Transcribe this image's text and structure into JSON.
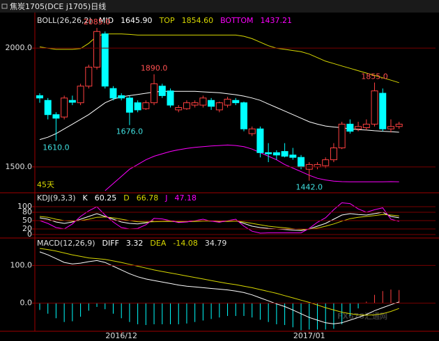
{
  "title": "焦炭1705(DCE j1705)日线",
  "watermark": "FX678汇通网",
  "chart_data": [
    {
      "type": "candlestick",
      "indicator": "BOLL(26,26,2)",
      "note": "45天",
      "up_color": "#ff4040",
      "down_color": "#00ffff",
      "open": [
        1800,
        1780,
        1720,
        1710,
        1780,
        1770,
        1840,
        1920,
        2060,
        1830,
        1800,
        1790,
        1770,
        1745,
        1770,
        1840,
        1820,
        1740,
        1745,
        1760,
        1760,
        1780,
        1740,
        1760,
        1780,
        1770,
        1640,
        1660,
        1560,
        1560,
        1565,
        1550,
        1540,
        1490,
        1500,
        1505,
        1530,
        1580,
        1680,
        1660,
        1665,
        1680,
        1810,
        1660,
        1670
      ],
      "high": [
        1810,
        1790,
        1730,
        1800,
        1800,
        1850,
        1930,
        2085,
        2070,
        1840,
        1810,
        1800,
        1780,
        1780,
        1890,
        1850,
        1830,
        1760,
        1780,
        1780,
        1800,
        1790,
        1775,
        1795,
        1790,
        1775,
        1670,
        1670,
        1600,
        1570,
        1600,
        1580,
        1550,
        1520,
        1520,
        1540,
        1600,
        1690,
        1700,
        1690,
        1700,
        1855,
        1830,
        1700,
        1690
      ],
      "low": [
        1770,
        1700,
        1610,
        1700,
        1760,
        1760,
        1830,
        1910,
        1830,
        1780,
        1780,
        1676,
        1730,
        1740,
        1760,
        1790,
        1750,
        1730,
        1740,
        1750,
        1750,
        1740,
        1730,
        1750,
        1760,
        1650,
        1630,
        1540,
        1520,
        1530,
        1540,
        1530,
        1490,
        1442,
        1490,
        1495,
        1520,
        1575,
        1640,
        1650,
        1655,
        1670,
        1650,
        1645,
        1660
      ],
      "close": [
        1790,
        1720,
        1705,
        1790,
        1772,
        1840,
        1920,
        2070,
        1840,
        1790,
        1790,
        1730,
        1740,
        1770,
        1850,
        1800,
        1760,
        1750,
        1770,
        1770,
        1790,
        1755,
        1770,
        1785,
        1770,
        1660,
        1660,
        1560,
        1555,
        1550,
        1545,
        1540,
        1500,
        1510,
        1510,
        1530,
        1580,
        1680,
        1650,
        1670,
        1680,
        1820,
        1660,
        1670,
        1680
      ],
      "series": [
        {
          "name": "MID",
          "color": "#ffffff",
          "readout": "1645.90",
          "values": [
            1615,
            1625,
            1640,
            1660,
            1680,
            1700,
            1720,
            1745,
            1770,
            1785,
            1795,
            1800,
            1805,
            1810,
            1815,
            1818,
            1818,
            1818,
            1818,
            1818,
            1816,
            1814,
            1812,
            1808,
            1804,
            1798,
            1790,
            1780,
            1765,
            1750,
            1735,
            1720,
            1705,
            1690,
            1680,
            1672,
            1668,
            1665,
            1660,
            1657,
            1655,
            1652,
            1650,
            1648,
            1645.9
          ]
        },
        {
          "name": "TOP",
          "color": "#d8d800",
          "readout": "1854.60",
          "values": [
            2005,
            2000,
            1995,
            1995,
            1995,
            1998,
            2020,
            2050,
            2060,
            2060,
            2060,
            2058,
            2055,
            2055,
            2055,
            2055,
            2055,
            2055,
            2055,
            2055,
            2055,
            2055,
            2055,
            2055,
            2055,
            2050,
            2040,
            2025,
            2010,
            2000,
            1995,
            1990,
            1985,
            1975,
            1960,
            1945,
            1935,
            1925,
            1915,
            1905,
            1895,
            1885,
            1875,
            1865,
            1854.6
          ]
        },
        {
          "name": "BOTTOM",
          "color": "#ff00ff",
          "readout": "1437.21",
          "values": [
            null,
            null,
            null,
            null,
            null,
            null,
            null,
            null,
            1400,
            1430,
            1460,
            1490,
            1510,
            1530,
            1545,
            1555,
            1565,
            1572,
            1578,
            1582,
            1585,
            1588,
            1590,
            1592,
            1590,
            1585,
            1575,
            1560,
            1545,
            1530,
            1510,
            1495,
            1480,
            1465,
            1452,
            1445,
            1440,
            1438,
            1437,
            1437,
            1437,
            1437,
            1437,
            1438,
            1437.21
          ]
        }
      ],
      "annotations": [
        {
          "value": 2085,
          "label": "2085.0"
        },
        {
          "value": 1890,
          "label": "1890.0"
        },
        {
          "value": 1676,
          "label": "1676.0"
        },
        {
          "value": 1610,
          "label": "1610.0"
        },
        {
          "value": 1442,
          "label": "1442.0"
        },
        {
          "value": 1855,
          "label": "1855.0"
        }
      ],
      "ylim": [
        1394,
        2144
      ],
      "yticks": [
        {
          "value": 2000,
          "label": "2000.0"
        },
        {
          "value": 1500,
          "label": "1500.0"
        }
      ],
      "grid": true
    },
    {
      "type": "line",
      "indicator": "KDJ(9,3,3)",
      "series": [
        {
          "name": "K",
          "color": "#ffffff",
          "readout": "60.25",
          "values": [
            60,
            55,
            45,
            40,
            45,
            55,
            65,
            75,
            65,
            55,
            45,
            40,
            38,
            42,
            50,
            50,
            48,
            45,
            46,
            48,
            50,
            48,
            46,
            48,
            50,
            40,
            30,
            25,
            22,
            20,
            18,
            16,
            14,
            20,
            30,
            40,
            55,
            70,
            75,
            72,
            70,
            75,
            80,
            65,
            60.25
          ]
        },
        {
          "name": "D",
          "color": "#d8d800",
          "readout": "66.78",
          "values": [
            65,
            62,
            55,
            50,
            48,
            50,
            55,
            62,
            63,
            60,
            55,
            50,
            46,
            45,
            46,
            47,
            47,
            46,
            46,
            47,
            48,
            48,
            47,
            47,
            48,
            45,
            40,
            35,
            30,
            27,
            24,
            21,
            18,
            19,
            23,
            30,
            38,
            48,
            57,
            62,
            65,
            68,
            72,
            70,
            66.78
          ]
        },
        {
          "name": "J",
          "color": "#ff00ff",
          "readout": "47.18",
          "values": [
            50,
            40,
            25,
            20,
            38,
            65,
            85,
            100,
            70,
            45,
            25,
            20,
            22,
            35,
            58,
            56,
            50,
            43,
            45,
            50,
            55,
            48,
            44,
            50,
            55,
            30,
            12,
            5,
            6,
            6,
            6,
            6,
            6,
            22,
            44,
            60,
            89,
            114,
            111,
            92,
            80,
            89,
            96,
            55,
            47.18
          ]
        }
      ],
      "ylim": [
        -10,
        145
      ],
      "yticks": [
        100,
        80,
        50,
        20,
        0
      ],
      "grid": true
    },
    {
      "type": "macd",
      "indicator": "MACD(12,26,9)",
      "series": [
        {
          "name": "DIFF",
          "color": "#ffffff",
          "readout": "3.32",
          "values": [
            136,
            128,
            118,
            108,
            104,
            106,
            110,
            113,
            108,
            98,
            88,
            78,
            70,
            64,
            60,
            56,
            52,
            48,
            45,
            43,
            41,
            39,
            37,
            35,
            32,
            28,
            22,
            14,
            6,
            -2,
            -9,
            -18,
            -28,
            -38,
            -45,
            -52,
            -55,
            -52,
            -45,
            -38,
            -30,
            -20,
            -12,
            -4,
            3.32
          ]
        },
        {
          "name": "DEA",
          "color": "#d8d800",
          "readout": "-14.08",
          "values": [
            145,
            142,
            138,
            133,
            128,
            124,
            120,
            118,
            116,
            112,
            108,
            103,
            98,
            93,
            88,
            84,
            80,
            76,
            72,
            68,
            64,
            60,
            56,
            52,
            49,
            45,
            41,
            36,
            31,
            26,
            20,
            14,
            8,
            2,
            -5,
            -12,
            -18,
            -24,
            -28,
            -31,
            -32,
            -31,
            -28,
            -22,
            -14.08
          ]
        }
      ],
      "histogram": {
        "readout": "34.79",
        "up_color": "#ff4040",
        "down_color": "#00ffff",
        "values": [
          -18,
          -28,
          -40,
          -50,
          -48,
          -36,
          -20,
          -10,
          -16,
          -28,
          -40,
          -50,
          -56,
          -58,
          -56,
          -56,
          -56,
          -56,
          -54,
          -50,
          -46,
          -42,
          -38,
          -34,
          -34,
          -34,
          -38,
          -44,
          -50,
          -56,
          -58,
          -64,
          -72,
          -70,
          -70,
          -70,
          -68,
          -56,
          -34,
          -14,
          4,
          22,
          32,
          36,
          34.79
        ]
      },
      "categories": [
        null,
        null,
        null,
        null,
        null,
        null,
        null,
        null,
        null,
        null,
        "2016/12",
        null,
        null,
        null,
        null,
        null,
        null,
        null,
        null,
        null,
        null,
        null,
        null,
        null,
        null,
        null,
        null,
        null,
        null,
        null,
        null,
        null,
        null,
        "2017/01",
        null,
        null,
        null,
        null,
        null,
        null,
        null,
        null,
        null,
        null,
        null
      ],
      "ylim": [
        -72.7,
        169
      ],
      "yticks": [
        {
          "value": 100,
          "label": "100.0"
        },
        {
          "value": 0,
          "label": "0.0"
        }
      ],
      "grid": true
    }
  ]
}
